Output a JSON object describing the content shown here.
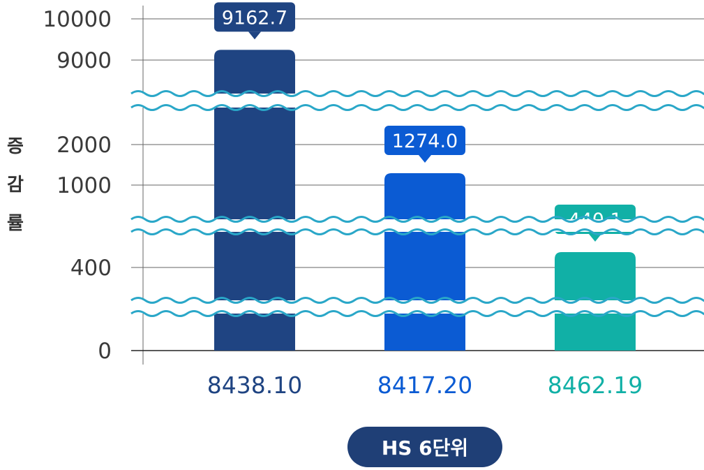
{
  "chart_data": {
    "type": "bar",
    "categories": [
      "8438.10",
      "8417.20",
      "8462.19"
    ],
    "values": [
      9162.7,
      1274.0,
      440.1
    ],
    "data_labels": [
      "9162.7",
      "1274.0",
      "440.1"
    ],
    "colors": [
      "#1f4482",
      "#0b5bd3",
      "#11b0a6"
    ],
    "ylabel": "증감률",
    "xlabel": "HS 6단위",
    "ylim": [
      0,
      10000
    ],
    "yticks": [
      "0",
      "400",
      "1000",
      "2000",
      "9000",
      "10000"
    ],
    "axis_breaks": true,
    "grid": true
  }
}
